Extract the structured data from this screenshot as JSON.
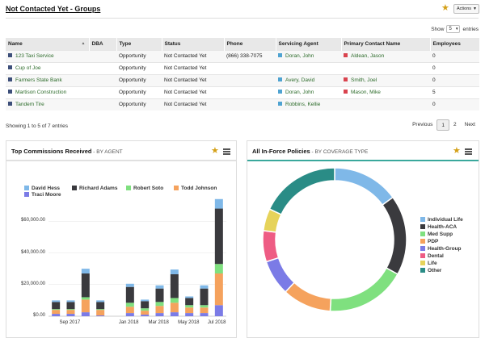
{
  "header": {
    "title": "Not Contacted Yet - Groups",
    "actions_label": "Actions"
  },
  "colors": {
    "star": "#d4a017",
    "link": "#2c6b2a"
  },
  "icons": {
    "favorite": "star-icon",
    "menu": "hamburger-menu-icon"
  },
  "table": {
    "show_label": "Show",
    "show_value": "5",
    "entries_label": "entries",
    "columns": [
      "Name",
      "DBA",
      "Type",
      "Status",
      "Phone",
      "Servicing Agent",
      "Primary Contact Name",
      "Employees"
    ],
    "rows": [
      {
        "name": "123 Taxi Service",
        "name_color": "#3d4f7a",
        "dba": "",
        "type": "Opportunity",
        "status": "Not Contacted Yet",
        "phone": "(866) 338-7075",
        "agent": "Doran, John",
        "agent_color": "#4fa3d1",
        "contact": "Aldean, Jason",
        "contact_color": "#d9434e",
        "employees": "0"
      },
      {
        "name": "Cup of Joe",
        "name_color": "#3d4f7a",
        "dba": "",
        "type": "Opportunity",
        "status": "Not Contacted Yet",
        "phone": "",
        "agent": "",
        "agent_color": "",
        "contact": "",
        "contact_color": "",
        "employees": "0"
      },
      {
        "name": "Farmers State Bank",
        "name_color": "#3d4f7a",
        "dba": "",
        "type": "Opportunity",
        "status": "Not Contacted Yet",
        "phone": "",
        "agent": "Avery, David",
        "agent_color": "#4fa3d1",
        "contact": "Smith, Joel",
        "contact_color": "#d9434e",
        "employees": "0"
      },
      {
        "name": "Martison Construction",
        "name_color": "#3d4f7a",
        "dba": "",
        "type": "Opportunity",
        "status": "Not Contacted Yet",
        "phone": "",
        "agent": "Doran, John",
        "agent_color": "#4fa3d1",
        "contact": "Mason, Mike",
        "contact_color": "#d9434e",
        "employees": "5"
      },
      {
        "name": "Tandem Tire",
        "name_color": "#3d4f7a",
        "dba": "",
        "type": "Opportunity",
        "status": "Not Contacted Yet",
        "phone": "",
        "agent": "Robbins, Kellie",
        "agent_color": "#4fa3d1",
        "contact": "",
        "contact_color": "",
        "employees": "0"
      }
    ],
    "info": "Showing 1 to 5 of 7 entries",
    "pager": {
      "prev": "Previous",
      "pages": [
        "1",
        "2"
      ],
      "current": "1",
      "next": "Next"
    }
  },
  "commissions_panel": {
    "title": "Top Commissions Received",
    "subtitle": " - BY AGENT",
    "accent": "#e0e0e0",
    "chart_data": {
      "type": "bar",
      "stacked": true,
      "ylim": [
        0,
        80000
      ],
      "yticks": [
        "$0.00",
        "$20,000.00",
        "$40,000.00",
        "$60,000.00"
      ],
      "ytick_values": [
        0,
        20000,
        40000,
        60000
      ],
      "x_tick_labels": [
        {
          "index": 1,
          "label": "Sep 2017"
        },
        {
          "index": 5,
          "label": "Jan 2018"
        },
        {
          "index": 7,
          "label": "Mar 2018"
        },
        {
          "index": 9,
          "label": "May 2018"
        },
        {
          "index": 11,
          "label": "Jul 2018"
        }
      ],
      "categories": [
        "1",
        "2",
        "3",
        "4",
        "5",
        "6",
        "7",
        "8",
        "9",
        "10",
        "11",
        "12"
      ],
      "legend_position": "top",
      "series": [
        {
          "name": "Traci Moore",
          "color": "#7b7be6",
          "values": [
            1500,
            1500,
            2500,
            500,
            0,
            2000,
            1000,
            2000,
            2500,
            2000,
            2000,
            7000
          ]
        },
        {
          "name": "Todd Johnson",
          "color": "#f5a25d",
          "values": [
            2500,
            2500,
            8000,
            3500,
            0,
            4000,
            2500,
            4500,
            6000,
            3500,
            3500,
            20000
          ]
        },
        {
          "name": "Robert Soto",
          "color": "#7fe07f",
          "values": [
            500,
            500,
            1500,
            500,
            0,
            2500,
            1500,
            2500,
            3000,
            1500,
            1500,
            6000
          ]
        },
        {
          "name": "Richard Adams",
          "color": "#3a3a3e",
          "values": [
            4500,
            4500,
            15000,
            4500,
            0,
            10000,
            4500,
            8500,
            15000,
            4500,
            10500,
            35000
          ]
        },
        {
          "name": "David Hess",
          "color": "#7fb8e8",
          "values": [
            1000,
            1000,
            3000,
            1000,
            0,
            2000,
            1000,
            2000,
            3000,
            1000,
            2000,
            6000
          ]
        }
      ]
    }
  },
  "policies_panel": {
    "title": "All In-Force Policies",
    "subtitle": " - BY COVERAGE TYPE",
    "accent": "#3aa89c",
    "chart_data": {
      "type": "pie",
      "donut": true,
      "legend_position": "right",
      "categories": [
        "Individual Life",
        "Health-ACA",
        "Med Supp",
        "PDP",
        "Health-Group",
        "Dental",
        "Life",
        "Other"
      ],
      "values": [
        15,
        18,
        18,
        11,
        8,
        7,
        5,
        18
      ],
      "colors": [
        "#7fb8e8",
        "#3a3a3e",
        "#7fe07f",
        "#f5a25d",
        "#7b7be6",
        "#ee5c84",
        "#e6d35a",
        "#2a8c86"
      ]
    }
  }
}
